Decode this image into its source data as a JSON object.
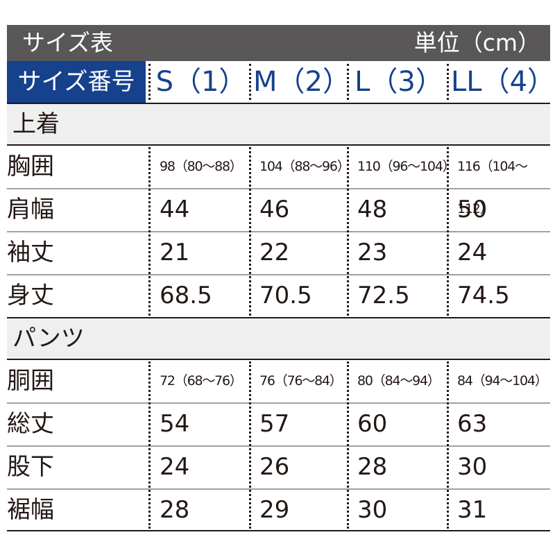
{
  "header": {
    "title": "サイズ表",
    "unit": "単位（cm）"
  },
  "columns": {
    "label": "サイズ番号",
    "sizes": [
      "S（1）",
      "M（2）",
      "L（3）",
      "LL（4）"
    ]
  },
  "sections": [
    {
      "name": "上着",
      "rows": [
        {
          "label": "胸囲",
          "values": [
            "98（80〜88）",
            "104（88〜96）",
            "110（96〜104）",
            "116（104〜112）"
          ]
        },
        {
          "label": "肩幅",
          "values": [
            "44",
            "46",
            "48",
            "50"
          ]
        },
        {
          "label": "袖丈",
          "values": [
            "21",
            "22",
            "23",
            "24"
          ]
        },
        {
          "label": "身丈",
          "values": [
            "68.5",
            "70.5",
            "72.5",
            "74.5"
          ]
        }
      ]
    },
    {
      "name": "パンツ",
      "rows": [
        {
          "label": "胴囲",
          "values": [
            "72（68〜76）",
            "76（76〜84）",
            "80（84〜94）",
            "84（94〜104）"
          ]
        },
        {
          "label": "総丈",
          "values": [
            "54",
            "57",
            "60",
            "63"
          ]
        },
        {
          "label": "股下",
          "values": [
            "24",
            "26",
            "28",
            "30"
          ]
        },
        {
          "label": "裾幅",
          "values": [
            "28",
            "29",
            "30",
            "31"
          ]
        }
      ]
    }
  ],
  "colors": {
    "title_bg": "#595757",
    "label_bg": "#16418d",
    "size_text": "#16418d",
    "section_bg": "#efefef",
    "text": "#231815"
  }
}
